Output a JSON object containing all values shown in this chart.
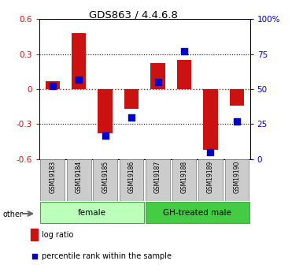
{
  "title": "GDS863 / 4.4.6.8",
  "samples": [
    "GSM19183",
    "GSM19184",
    "GSM19185",
    "GSM19186",
    "GSM19187",
    "GSM19188",
    "GSM19189",
    "GSM19190"
  ],
  "log_ratio": [
    0.07,
    0.48,
    -0.38,
    -0.17,
    0.22,
    0.25,
    -0.52,
    -0.14
  ],
  "percentile_rank": [
    52,
    57,
    17,
    30,
    55,
    77,
    5,
    27
  ],
  "ylim_left": [
    -0.6,
    0.6
  ],
  "ylim_right": [
    0,
    100
  ],
  "yticks_left": [
    -0.6,
    -0.3,
    0.0,
    0.3,
    0.6
  ],
  "ytick_labels_left": [
    "-0.6",
    "-0.3",
    "0",
    "0.3",
    "0.6"
  ],
  "yticks_right": [
    0,
    25,
    50,
    75,
    100
  ],
  "ytick_labels_right": [
    "0",
    "25",
    "50",
    "75",
    "100%"
  ],
  "groups": [
    {
      "label": "female",
      "start": 0,
      "end": 4,
      "color": "#bbffbb"
    },
    {
      "label": "GH-treated male",
      "start": 4,
      "end": 8,
      "color": "#44cc44"
    }
  ],
  "bar_color": "#cc1111",
  "dot_color": "#0000cc",
  "zero_line_color": "#cc1111",
  "grid_color": "#333333",
  "bg_color": "#ffffff",
  "label_log_ratio": "log ratio",
  "label_percentile": "percentile rank within the sample",
  "other_label": "other",
  "bar_width": 0.55,
  "dot_size": 30
}
